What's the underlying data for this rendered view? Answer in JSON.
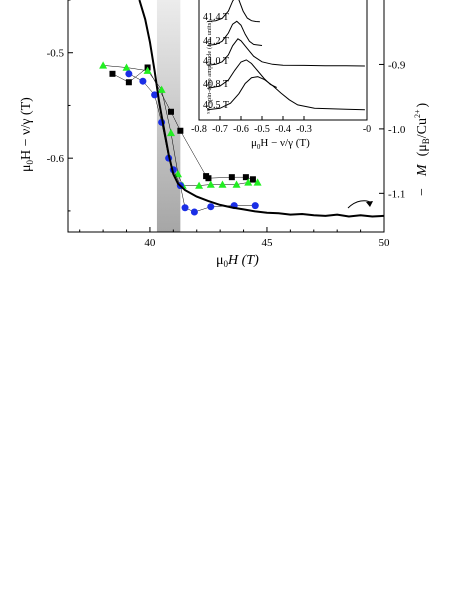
{
  "chart_data": [
    {
      "type": "scatter",
      "xlabel_main": "μ",
      "xlabel_sub": "0",
      "xlabel_rest": "H  (T)",
      "ylabel_left_main": "μ",
      "ylabel_left_sub": "0",
      "ylabel_left_rest": "H − ν/γ (T)",
      "ylabel_right_dash": "−",
      "ylabel_right_M": "M",
      "ylabel_right_unit_a": "(μ",
      "ylabel_right_unit_sub": "B",
      "ylabel_right_unit_b": "/Cu",
      "ylabel_right_unit_sup": "2+",
      "ylabel_right_unit_c": ")",
      "xlim": [
        36.5,
        50
      ],
      "ylim_left": [
        -0.67,
        -0.45
      ],
      "ylim_right": [
        -1.16,
        -0.8
      ],
      "x_ticks": [
        "40",
        "45",
        "50"
      ],
      "x_tick_values": [
        40,
        45,
        50
      ],
      "y_ticks_left": [
        "-0.5",
        "-0.6"
      ],
      "y_tick_values_left": [
        -0.5,
        -0.6
      ],
      "y_ticks_right": [
        "-0.9",
        "-1.0",
        "-1.1"
      ],
      "y_tick_values_right": [
        -0.9,
        -1.0,
        -1.1
      ],
      "shaded_region_x": [
        40.3,
        41.3
      ],
      "series": [
        {
          "marker": "square",
          "color": "#000000",
          "axis": "left",
          "x": [
            38.4,
            39.1,
            39.9,
            40.9,
            41.3,
            42.4,
            42.5,
            43.5,
            44.1,
            44.4
          ],
          "y": [
            -0.52,
            -0.528,
            -0.514,
            -0.556,
            -0.574,
            -0.617,
            -0.619,
            -0.618,
            -0.618,
            -0.62
          ]
        },
        {
          "marker": "triangle",
          "color": "#22ee22",
          "axis": "left",
          "x": [
            38.0,
            39.0,
            39.9,
            40.5,
            40.9,
            41.2,
            41.4,
            42.1,
            42.6,
            43.1,
            43.7,
            44.2,
            44.6
          ],
          "y": [
            -0.512,
            -0.514,
            -0.517,
            -0.535,
            -0.576,
            -0.615,
            -0.626,
            -0.626,
            -0.625,
            -0.625,
            -0.625,
            -0.623,
            -0.623
          ]
        },
        {
          "marker": "circle",
          "color": "#1a2ee6",
          "axis": "left",
          "x": [
            39.1,
            39.7,
            40.2,
            40.5,
            40.8,
            41.0,
            41.3,
            41.5,
            41.9,
            42.6,
            43.6,
            44.5
          ],
          "y": [
            -0.52,
            -0.527,
            -0.54,
            -0.566,
            -0.6,
            -0.611,
            -0.626,
            -0.647,
            -0.651,
            -0.646,
            -0.645,
            -0.645
          ]
        },
        {
          "type": "line",
          "color": "#000000",
          "axis": "right",
          "x": [
            39.55,
            39.8,
            40.0,
            40.2,
            40.4,
            40.6,
            40.8,
            41.0,
            41.2,
            41.5,
            42.0,
            42.5,
            43.0,
            43.5,
            44.0,
            44.5,
            45.0,
            45.5,
            46.0,
            46.5,
            47.0,
            47.5,
            48.0,
            48.5,
            49.0,
            49.5,
            50.0
          ],
          "y": [
            -0.8,
            -0.83,
            -0.865,
            -0.91,
            -0.96,
            -1.0,
            -1.04,
            -1.07,
            -1.085,
            -1.095,
            -1.105,
            -1.112,
            -1.118,
            -1.122,
            -1.125,
            -1.128,
            -1.13,
            -1.131,
            -1.133,
            -1.132,
            -1.134,
            -1.135,
            -1.133,
            -1.136,
            -1.134,
            -1.136,
            -1.135
          ]
        }
      ]
    },
    {
      "type": "line",
      "inset": true,
      "ylabel": "⁵¹V spin-echo amplitude (arb. units)",
      "xlabel_main": "μ",
      "xlabel_sub": "0",
      "xlabel_rest": "H − ν/γ (T)",
      "xlim": [
        -0.8,
        0
      ],
      "x_ticks": [
        "-0.8",
        "-0.7",
        "-0.6",
        "-0.5",
        "-0.4",
        "-0.3",
        "-0"
      ],
      "x_tick_values": [
        -0.8,
        -0.7,
        -0.6,
        -0.5,
        -0.4,
        -0.3,
        0.0
      ],
      "series": [
        {
          "name": "41.4 T",
          "x": [
            -0.76,
            -0.72,
            -0.69,
            -0.66,
            -0.64,
            -0.625,
            -0.61,
            -0.59,
            -0.57,
            -0.55,
            -0.53,
            -0.51
          ],
          "y": [
            0.02,
            0.05,
            0.14,
            0.42,
            0.8,
            0.98,
            0.85,
            0.42,
            0.15,
            0.05,
            0.02,
            0.01
          ]
        },
        {
          "name": "41.2 T",
          "x": [
            -0.76,
            -0.72,
            -0.69,
            -0.66,
            -0.64,
            -0.62,
            -0.6,
            -0.58,
            -0.56,
            -0.54,
            -0.5
          ],
          "y": [
            0.02,
            0.06,
            0.18,
            0.5,
            0.84,
            0.95,
            0.8,
            0.45,
            0.18,
            0.06,
            0.02
          ]
        },
        {
          "name": "41.0 T",
          "x": [
            -0.76,
            -0.72,
            -0.69,
            -0.66,
            -0.64,
            -0.615,
            -0.6,
            -0.57,
            -0.54,
            -0.5,
            -0.45,
            -0.4,
            -0.3,
            -0.2,
            -0.1,
            -0.01
          ],
          "y": [
            0.02,
            0.06,
            0.15,
            0.4,
            0.72,
            0.97,
            0.9,
            0.62,
            0.35,
            0.15,
            0.06,
            0.03,
            0.02,
            0.01,
            0.01,
            0.0
          ]
        },
        {
          "name": "40.8 T",
          "x": [
            -0.76,
            -0.7,
            -0.66,
            -0.63,
            -0.6,
            -0.575,
            -0.55,
            -0.52,
            -0.49,
            -0.46,
            -0.43
          ],
          "y": [
            0.02,
            0.1,
            0.3,
            0.62,
            0.9,
            0.97,
            0.85,
            0.6,
            0.35,
            0.15,
            0.05
          ]
        },
        {
          "name": "40.5 T",
          "x": [
            -0.76,
            -0.7,
            -0.65,
            -0.61,
            -0.58,
            -0.55,
            -0.52,
            -0.49,
            -0.45,
            -0.41,
            -0.37,
            -0.33,
            -0.25,
            -0.1,
            -0.01
          ],
          "y": [
            0.01,
            0.05,
            0.2,
            0.48,
            0.78,
            0.95,
            0.98,
            0.9,
            0.72,
            0.5,
            0.3,
            0.15,
            0.05,
            0.02,
            0.01
          ]
        }
      ]
    }
  ],
  "colors": {
    "axis": "#000000",
    "shade_top": "#e6e6e6",
    "shade_bottom": "#a9a9a9"
  }
}
